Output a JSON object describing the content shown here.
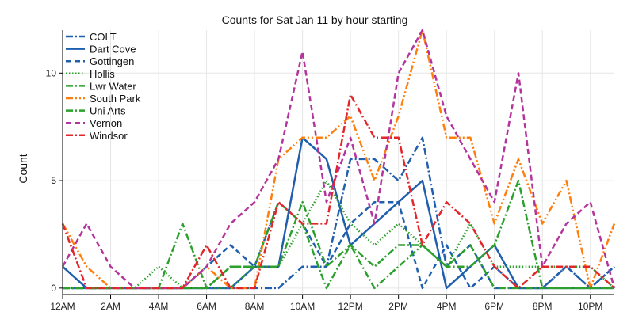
{
  "chart_data": {
    "type": "line",
    "title": "Counts for Sat Jan 11 by hour starting",
    "xlabel": "",
    "ylabel": "Count",
    "x": [
      0,
      1,
      2,
      3,
      4,
      5,
      6,
      7,
      8,
      9,
      10,
      11,
      12,
      13,
      14,
      15,
      16,
      17,
      18,
      19,
      20,
      21,
      22,
      23
    ],
    "xlim": [
      0,
      23
    ],
    "ylim": [
      -0.3,
      12
    ],
    "x_ticks": [
      0,
      2,
      4,
      6,
      8,
      10,
      12,
      14,
      16,
      18,
      20,
      22
    ],
    "x_tick_labels": [
      "12AM",
      "2AM",
      "4AM",
      "6AM",
      "8AM",
      "10AM",
      "12PM",
      "2PM",
      "4PM",
      "6PM",
      "8PM",
      "10PM"
    ],
    "y_ticks": [
      0,
      5,
      10
    ],
    "y_tick_labels": [
      "0",
      "5",
      "10"
    ],
    "grid": true,
    "legend_position": "top-left",
    "series": [
      {
        "name": "COLT",
        "color": "#1f5fae",
        "dash": "dashdot",
        "values": [
          0,
          0,
          0,
          0,
          0,
          0,
          0,
          0,
          0,
          0,
          1,
          1,
          6,
          6,
          5,
          7,
          1,
          2,
          0,
          0,
          0,
          1,
          0,
          1
        ]
      },
      {
        "name": "Dart Cove",
        "color": "#1f5fae",
        "dash": "solid",
        "values": [
          1,
          0,
          0,
          0,
          0,
          0,
          0,
          0,
          1,
          1,
          7,
          6,
          2,
          3,
          4,
          5,
          0,
          1,
          2,
          0,
          0,
          0,
          0,
          0
        ]
      },
      {
        "name": "Gottingen",
        "color": "#1f5fae",
        "dash": "dashed",
        "values": [
          0,
          0,
          0,
          0,
          0,
          0,
          1,
          2,
          1,
          4,
          3,
          1,
          3,
          4,
          4,
          0,
          2,
          0,
          1,
          0,
          0,
          1,
          0,
          1
        ]
      },
      {
        "name": "Hollis",
        "color": "#2ca02c",
        "dash": "dotted",
        "values": [
          0,
          0,
          0,
          0,
          1,
          0,
          0,
          0,
          1,
          1,
          3,
          5,
          3,
          2,
          3,
          2,
          1,
          3,
          1,
          1,
          1,
          1,
          1,
          0
        ]
      },
      {
        "name": "Lwr Water",
        "color": "#2ca02c",
        "dash": "dashdot",
        "values": [
          0,
          0,
          0,
          0,
          0,
          3,
          0,
          1,
          1,
          4,
          3,
          0,
          2,
          0,
          1,
          2,
          1,
          2,
          0,
          0,
          0,
          0,
          0,
          0
        ]
      },
      {
        "name": "South Park",
        "color": "#ff7f0e",
        "dash": "dashdotdot",
        "values": [
          3,
          1,
          0,
          0,
          0,
          0,
          1,
          0,
          0,
          6,
          7,
          7,
          8,
          5,
          8,
          12,
          7,
          7,
          3,
          6,
          3,
          5,
          0,
          3
        ]
      },
      {
        "name": "Uni Arts",
        "color": "#2ca02c",
        "dash": "dashdot",
        "values": [
          0,
          0,
          0,
          0,
          0,
          0,
          0,
          1,
          1,
          1,
          4,
          1,
          2,
          1,
          2,
          2,
          1,
          1,
          2,
          5,
          0,
          0,
          0,
          0
        ]
      },
      {
        "name": "Vernon",
        "color": "#b5339c",
        "dash": "dashed",
        "values": [
          1,
          3,
          1,
          0,
          0,
          0,
          1,
          3,
          4,
          6,
          11,
          4,
          7,
          3,
          10,
          12,
          8,
          6,
          4,
          10,
          1,
          3,
          4,
          0
        ]
      },
      {
        "name": "Windsor",
        "color": "#e3262a",
        "dash": "dashdot",
        "values": [
          3,
          0,
          0,
          0,
          0,
          0,
          2,
          0,
          0,
          4,
          3,
          3,
          9,
          7,
          7,
          2,
          4,
          3,
          1,
          0,
          1,
          1,
          1,
          0
        ]
      }
    ]
  }
}
